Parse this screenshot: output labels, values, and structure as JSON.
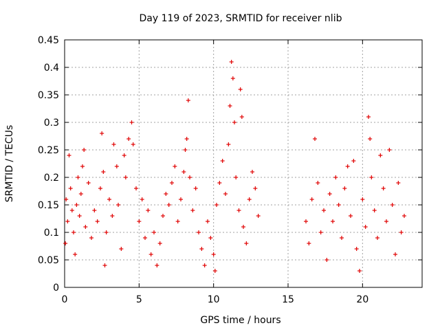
{
  "chart_data": {
    "type": "scatter",
    "title": "Day 119 of 2023, SRMTID for receiver nlib",
    "xlabel": "GPS time / hours",
    "ylabel": "SRMTID / TECUs",
    "xlim": [
      0,
      24
    ],
    "ylim": [
      0,
      0.45
    ],
    "xticks": [
      0,
      5,
      10,
      15,
      20
    ],
    "xtick_labels": [
      "0",
      "5",
      "10",
      "15",
      "20"
    ],
    "yticks": [
      0,
      0.05,
      0.1,
      0.15,
      0.2,
      0.25,
      0.3,
      0.35,
      0.4,
      0.45
    ],
    "ytick_labels": [
      "0",
      "0.05",
      "0.1",
      "0.15",
      "0.2",
      "0.25",
      "0.3",
      "0.35",
      "0.4",
      "0.45"
    ],
    "grid": true,
    "marker": "+",
    "color": "#e00000",
    "series": [
      {
        "name": "SRMTID",
        "points": [
          [
            0.05,
            0.08
          ],
          [
            0.1,
            0.16
          ],
          [
            0.2,
            0.12
          ],
          [
            0.3,
            0.24
          ],
          [
            0.4,
            0.18
          ],
          [
            0.5,
            0.14
          ],
          [
            0.6,
            0.1
          ],
          [
            0.7,
            0.06
          ],
          [
            0.8,
            0.15
          ],
          [
            0.9,
            0.2
          ],
          [
            1.0,
            0.13
          ],
          [
            1.1,
            0.17
          ],
          [
            1.2,
            0.22
          ],
          [
            1.3,
            0.25
          ],
          [
            1.4,
            0.11
          ],
          [
            1.6,
            0.19
          ],
          [
            1.8,
            0.09
          ],
          [
            2.0,
            0.14
          ],
          [
            2.2,
            0.12
          ],
          [
            2.4,
            0.18
          ],
          [
            2.5,
            0.28
          ],
          [
            2.6,
            0.21
          ],
          [
            2.7,
            0.04
          ],
          [
            2.8,
            0.1
          ],
          [
            3.0,
            0.16
          ],
          [
            3.2,
            0.13
          ],
          [
            3.3,
            0.26
          ],
          [
            3.5,
            0.22
          ],
          [
            3.6,
            0.15
          ],
          [
            3.8,
            0.07
          ],
          [
            4.0,
            0.24
          ],
          [
            4.1,
            0.2
          ],
          [
            4.3,
            0.27
          ],
          [
            4.5,
            0.3
          ],
          [
            4.6,
            0.26
          ],
          [
            4.8,
            0.18
          ],
          [
            5.0,
            0.12
          ],
          [
            5.2,
            0.16
          ],
          [
            5.4,
            0.09
          ],
          [
            5.6,
            0.14
          ],
          [
            5.8,
            0.06
          ],
          [
            6.0,
            0.1
          ],
          [
            6.2,
            0.04
          ],
          [
            6.4,
            0.08
          ],
          [
            6.6,
            0.13
          ],
          [
            6.8,
            0.17
          ],
          [
            7.0,
            0.15
          ],
          [
            7.2,
            0.19
          ],
          [
            7.4,
            0.22
          ],
          [
            7.6,
            0.12
          ],
          [
            7.8,
            0.16
          ],
          [
            8.0,
            0.21
          ],
          [
            8.1,
            0.25
          ],
          [
            8.2,
            0.27
          ],
          [
            8.3,
            0.34
          ],
          [
            8.4,
            0.2
          ],
          [
            8.6,
            0.14
          ],
          [
            8.8,
            0.18
          ],
          [
            9.0,
            0.1
          ],
          [
            9.2,
            0.07
          ],
          [
            9.4,
            0.04
          ],
          [
            9.6,
            0.12
          ],
          [
            9.8,
            0.09
          ],
          [
            10.0,
            0.06
          ],
          [
            10.1,
            0.03
          ],
          [
            10.2,
            0.15
          ],
          [
            10.4,
            0.19
          ],
          [
            10.6,
            0.23
          ],
          [
            10.8,
            0.17
          ],
          [
            11.0,
            0.26
          ],
          [
            11.1,
            0.33
          ],
          [
            11.2,
            0.41
          ],
          [
            11.3,
            0.38
          ],
          [
            11.4,
            0.3
          ],
          [
            11.5,
            0.2
          ],
          [
            11.7,
            0.14
          ],
          [
            11.8,
            0.36
          ],
          [
            11.9,
            0.31
          ],
          [
            12.0,
            0.11
          ],
          [
            12.2,
            0.08
          ],
          [
            12.4,
            0.16
          ],
          [
            12.6,
            0.21
          ],
          [
            12.8,
            0.18
          ],
          [
            13.0,
            0.13
          ],
          [
            16.2,
            0.12
          ],
          [
            16.4,
            0.08
          ],
          [
            16.6,
            0.16
          ],
          [
            16.8,
            0.27
          ],
          [
            17.0,
            0.19
          ],
          [
            17.2,
            0.1
          ],
          [
            17.4,
            0.14
          ],
          [
            17.6,
            0.05
          ],
          [
            17.8,
            0.17
          ],
          [
            18.0,
            0.12
          ],
          [
            18.2,
            0.2
          ],
          [
            18.4,
            0.15
          ],
          [
            18.6,
            0.09
          ],
          [
            18.8,
            0.18
          ],
          [
            19.0,
            0.22
          ],
          [
            19.2,
            0.13
          ],
          [
            19.4,
            0.23
          ],
          [
            19.6,
            0.07
          ],
          [
            19.8,
            0.03
          ],
          [
            20.0,
            0.16
          ],
          [
            20.2,
            0.11
          ],
          [
            20.4,
            0.31
          ],
          [
            20.5,
            0.27
          ],
          [
            20.6,
            0.2
          ],
          [
            20.8,
            0.14
          ],
          [
            21.0,
            0.09
          ],
          [
            21.2,
            0.24
          ],
          [
            21.4,
            0.18
          ],
          [
            21.6,
            0.12
          ],
          [
            21.8,
            0.25
          ],
          [
            22.0,
            0.15
          ],
          [
            22.2,
            0.06
          ],
          [
            22.4,
            0.19
          ],
          [
            22.6,
            0.1
          ],
          [
            22.8,
            0.13
          ]
        ]
      }
    ]
  }
}
